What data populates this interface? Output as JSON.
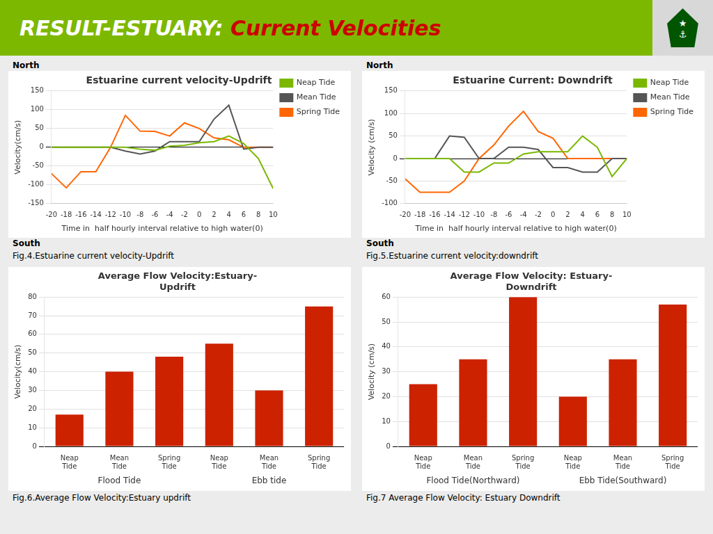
{
  "title": "RESULT-ESTUARY: Current Velocities",
  "annotations": [
    "★",
    "⚓"
  ],
  "chart_data": [
    {
      "type": "line",
      "title": "Estuarine current velocity-Updrift",
      "xlabel": "Time in  half hourly interval relative to high water(0)",
      "ylabel": "Velocity(cm/s)",
      "x": [
        -20,
        -18,
        -16,
        -14,
        -12,
        -10,
        -8,
        -6,
        -4,
        -2,
        0,
        2,
        4,
        6,
        8,
        10
      ],
      "series": [
        {
          "name": "Neap Tide",
          "color": "#7ab800",
          "values": [
            0,
            0,
            0,
            0,
            0,
            0,
            -5,
            -8,
            3,
            5,
            12,
            15,
            30,
            10,
            -30,
            -110
          ]
        },
        {
          "name": "Mean Tide",
          "color": "#555555",
          "values": [
            0,
            0,
            0,
            0,
            0,
            -10,
            -18,
            -10,
            15,
            15,
            15,
            75,
            112,
            -5,
            0,
            0
          ]
        },
        {
          "name": "Spring Tide",
          "color": "#ff6600",
          "values": [
            -70,
            -108,
            -65,
            -65,
            0,
            85,
            43,
            42,
            30,
            65,
            50,
            25,
            20,
            0,
            0,
            0
          ]
        }
      ],
      "xlim": [
        -20,
        10
      ],
      "xticks": [
        -20,
        -18,
        -16,
        -14,
        -12,
        -10,
        -8,
        -6,
        -4,
        -2,
        0,
        2,
        4,
        6,
        8,
        10
      ],
      "ylim": [
        -150,
        150
      ],
      "yticks": [
        -150,
        -100,
        -50,
        0,
        50,
        100,
        150
      ],
      "grid": "y",
      "legend": "right",
      "annotations": [
        "North",
        "South"
      ],
      "caption": "Fig.4.Estuarine current velocity-Updrift"
    },
    {
      "type": "line",
      "title": "Estuarine Current: Downdrift",
      "xlabel": "Time in  half hourly interval relative to high water(0)",
      "ylabel": "Velocity (cm/s)",
      "x": [
        -20,
        -18,
        -16,
        -14,
        -12,
        -10,
        -8,
        -6,
        -4,
        -2,
        0,
        2,
        4,
        6,
        8,
        10
      ],
      "series": [
        {
          "name": "Neap Tide",
          "color": "#7ab800",
          "values": [
            0,
            0,
            0,
            0,
            -30,
            -30,
            -10,
            -10,
            10,
            15,
            15,
            15,
            50,
            25,
            -40,
            0
          ]
        },
        {
          "name": "Mean Tide",
          "color": "#555555",
          "values": [
            0,
            0,
            0,
            50,
            47,
            0,
            0,
            25,
            25,
            20,
            -20,
            -20,
            -30,
            -30,
            0,
            0
          ]
        },
        {
          "name": "Spring Tide",
          "color": "#ff6600",
          "values": [
            -45,
            -75,
            -75,
            -75,
            -50,
            0,
            30,
            72,
            105,
            60,
            45,
            0,
            0,
            0,
            0,
            0
          ]
        }
      ],
      "xlim": [
        -20,
        10
      ],
      "xticks": [
        -20,
        -18,
        -16,
        -14,
        -12,
        -10,
        -8,
        -6,
        -4,
        -2,
        0,
        2,
        4,
        6,
        8,
        10
      ],
      "ylim": [
        -100,
        150
      ],
      "yticks": [
        -100,
        -50,
        0,
        50,
        100,
        150
      ],
      "grid": "y",
      "legend": "right",
      "annotations": [
        "North",
        "South"
      ],
      "caption": "Fig.5.Estuarine current velocity:downdrift"
    },
    {
      "type": "bar",
      "title": "Average Flow Velocity:Estuary-\nUpdrift",
      "ylabel": "Velocity(cm/s)",
      "categories": [
        "Neap\nTide",
        "Mean\nTide",
        "Spring\nTide",
        "Neap\nTide",
        "Mean\nTide",
        "Spring\nTide"
      ],
      "values": [
        17,
        40,
        48,
        55,
        30,
        75
      ],
      "color": "#cc2200",
      "ylim": [
        0,
        80
      ],
      "yticks": [
        0,
        10,
        20,
        30,
        40,
        50,
        60,
        70,
        80
      ],
      "grid": "y",
      "annotations": [
        "Flood Tide",
        "Ebb tide"
      ],
      "caption": "Fig.6.Average Flow Velocity:Estuary updrift"
    },
    {
      "type": "bar",
      "title": "Average Flow Velocity: Estuary-\nDowndrift",
      "ylabel": "Velocity (cm/s)",
      "categories": [
        "Neap\nTide",
        "Mean\nTide",
        "Spring\nTide",
        "Neap\nTide",
        "Mean\nTide",
        "Spring\nTide"
      ],
      "values": [
        25,
        35,
        60,
        20,
        35,
        57
      ],
      "color": "#cc2200",
      "ylim": [
        0,
        60
      ],
      "yticks": [
        0,
        10,
        20,
        30,
        40,
        50,
        60
      ],
      "grid": "y",
      "annotations": [
        "Flood Tide(Northward)",
        "Ebb Tide(Southward)"
      ],
      "caption": "Fig.7 Average Flow Velocity: Estuary Downdrift"
    }
  ]
}
